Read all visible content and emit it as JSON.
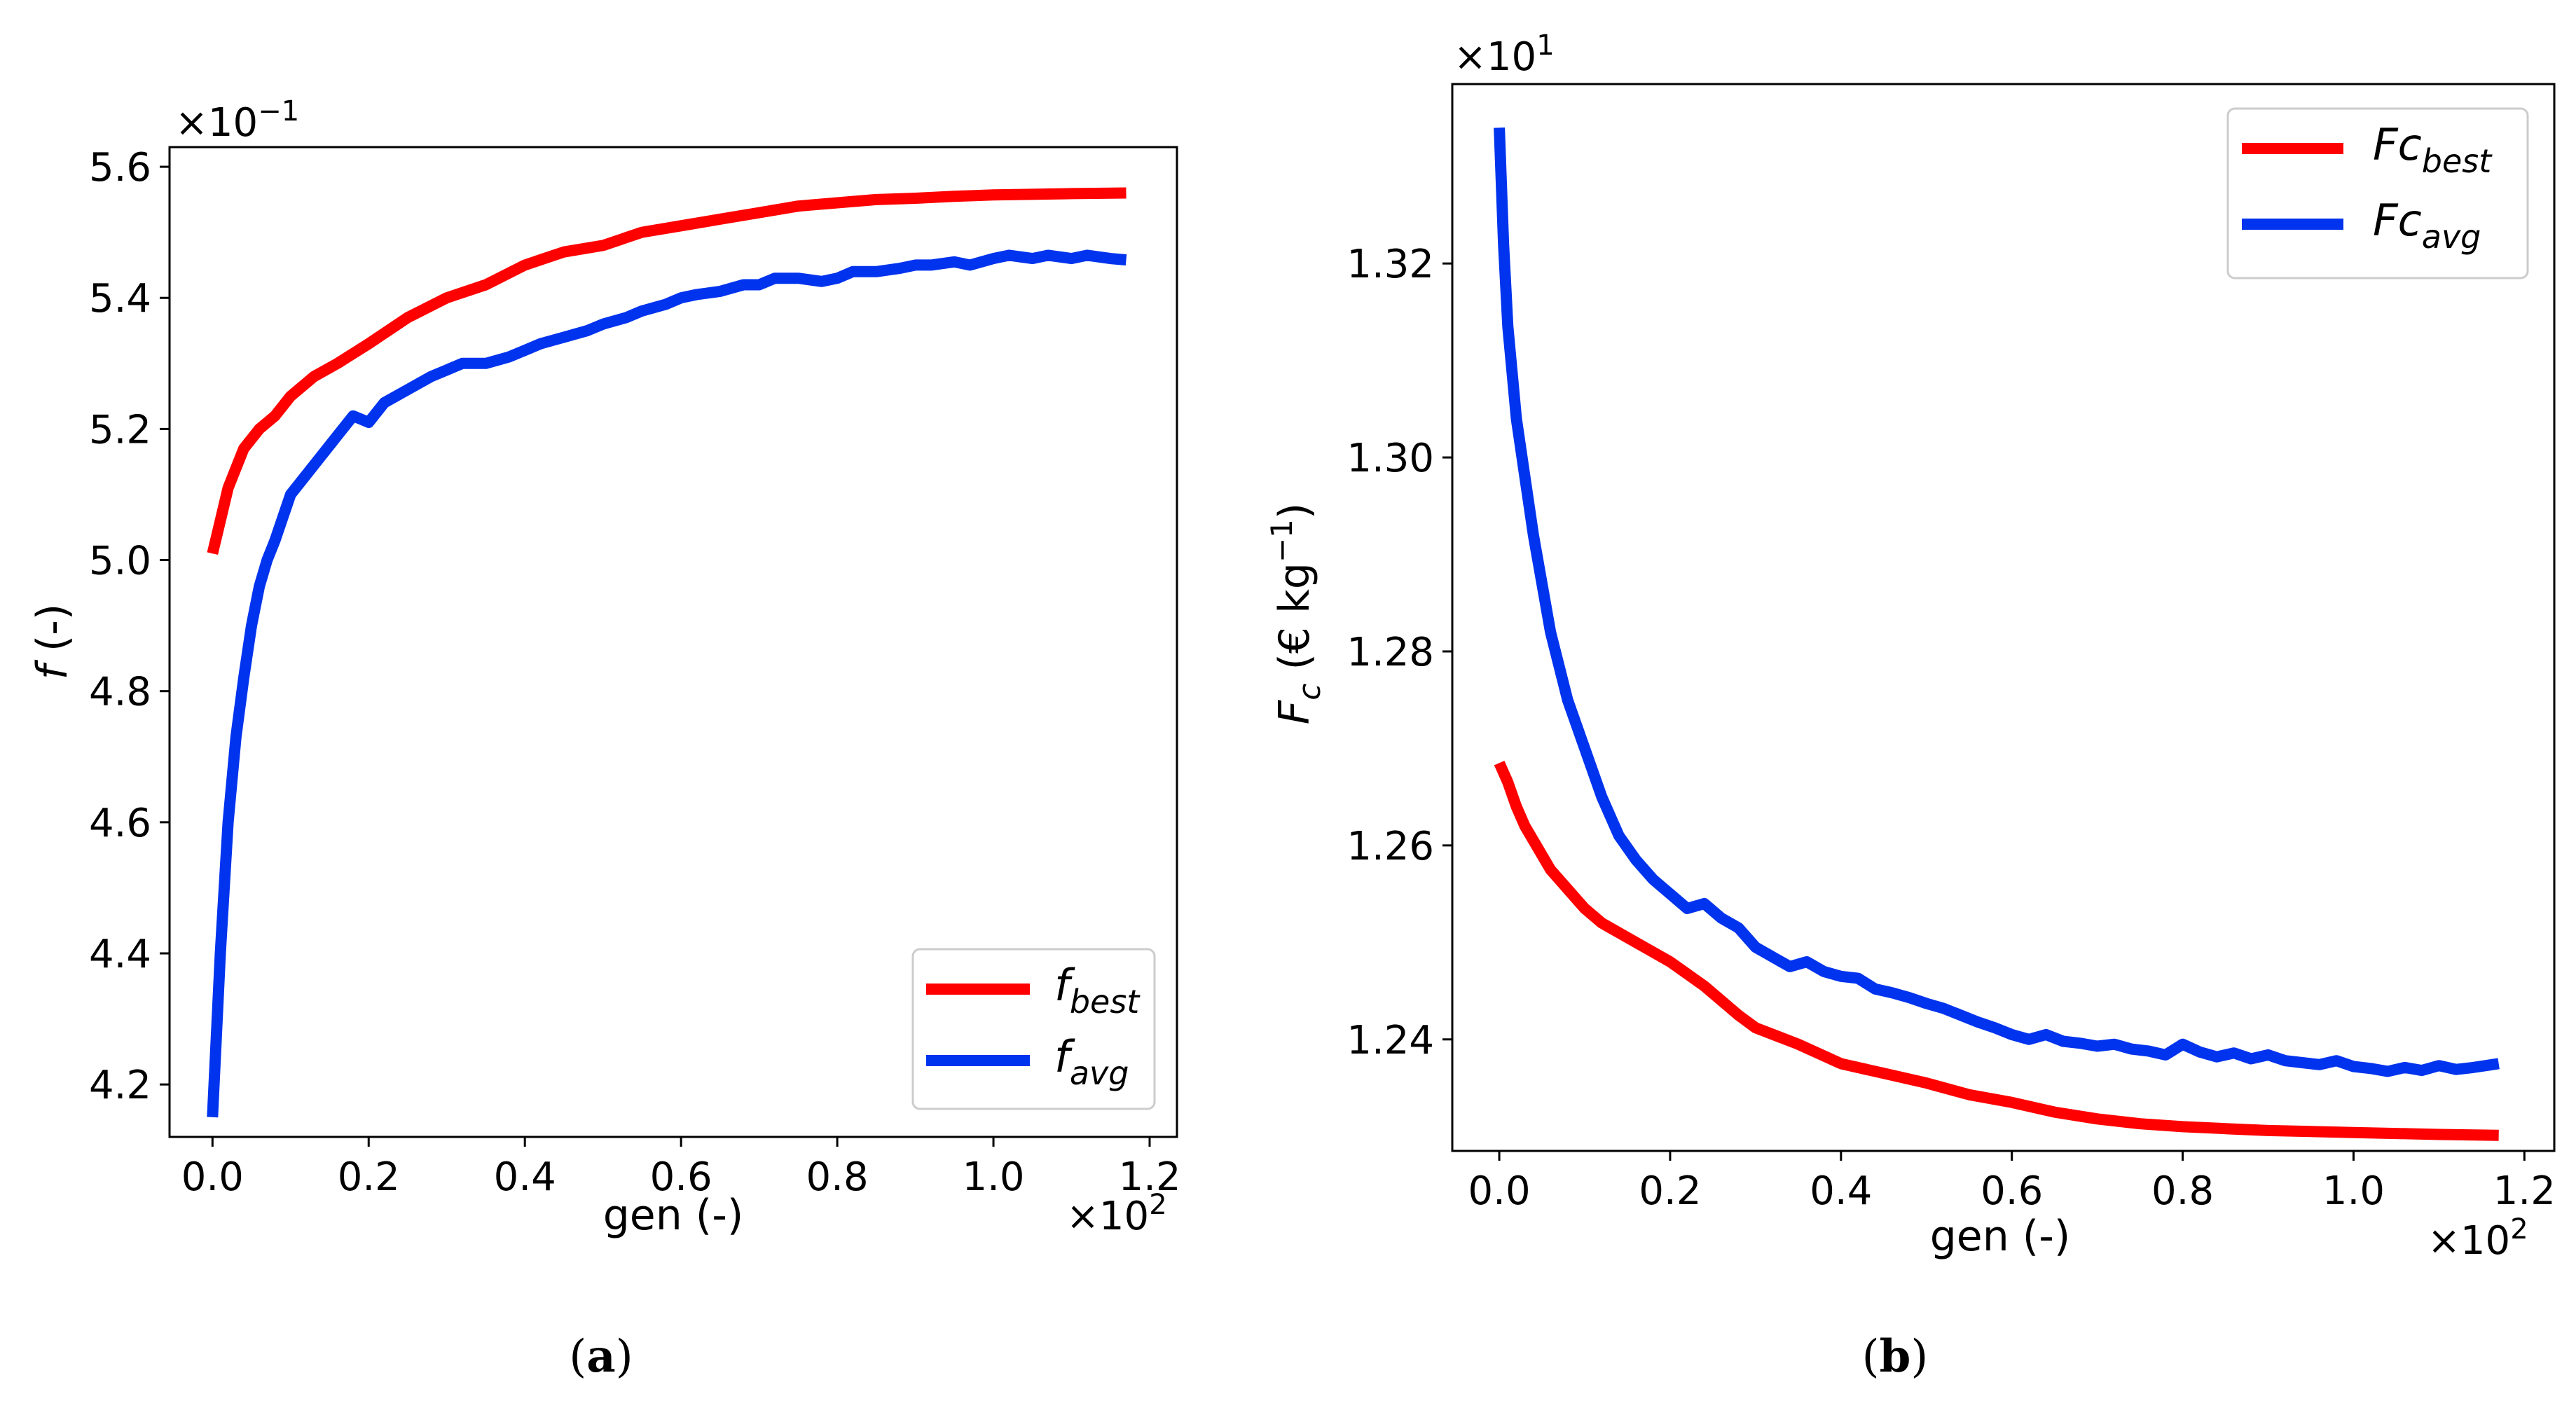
{
  "colors": {
    "best": "#ff0000",
    "avg": "#0033ee"
  },
  "chart_data": [
    {
      "type": "line",
      "panel": "a",
      "caption_prefix": "(",
      "caption_letter": "a",
      "caption_suffix": ")",
      "xlabel": "gen (-)",
      "ylabel_symbol": "f",
      "ylabel_unit": " (-)",
      "x_multiplier": {
        "base": "×10",
        "exp": "2"
      },
      "y_multiplier": {
        "base": "×10",
        "exp": "−1"
      },
      "xlim": [
        -0.055,
        1.235
      ],
      "ylim": [
        4.12,
        5.63
      ],
      "xticks": [
        0.0,
        0.2,
        0.4,
        0.6,
        0.8,
        1.0,
        1.2
      ],
      "xtick_labels": [
        "0.0",
        "0.2",
        "0.4",
        "0.6",
        "0.8",
        "1.0",
        "1.2"
      ],
      "yticks": [
        4.2,
        4.4,
        4.6,
        4.8,
        5.0,
        5.2,
        5.4,
        5.6
      ],
      "ytick_labels": [
        "4.2",
        "4.4",
        "4.6",
        "4.8",
        "5.0",
        "5.2",
        "5.4",
        "5.6"
      ],
      "legend_position": "lower-right",
      "series": [
        {
          "key": "best",
          "name": "f",
          "subscript": "best",
          "x": [
            0.0,
            0.01,
            0.02,
            0.04,
            0.06,
            0.08,
            0.1,
            0.13,
            0.16,
            0.2,
            0.25,
            0.3,
            0.35,
            0.4,
            0.45,
            0.5,
            0.55,
            0.6,
            0.65,
            0.7,
            0.75,
            0.8,
            0.85,
            0.9,
            0.95,
            1.0,
            1.05,
            1.1,
            1.17
          ],
          "values": [
            5.01,
            5.06,
            5.11,
            5.17,
            5.2,
            5.22,
            5.25,
            5.28,
            5.3,
            5.33,
            5.37,
            5.4,
            5.42,
            5.45,
            5.47,
            5.48,
            5.5,
            5.51,
            5.52,
            5.53,
            5.54,
            5.545,
            5.55,
            5.552,
            5.555,
            5.557,
            5.558,
            5.559,
            5.56
          ]
        },
        {
          "key": "avg",
          "name": "f",
          "subscript": "avg",
          "x": [
            0.0,
            0.01,
            0.02,
            0.03,
            0.04,
            0.05,
            0.06,
            0.07,
            0.08,
            0.1,
            0.12,
            0.14,
            0.16,
            0.18,
            0.2,
            0.22,
            0.25,
            0.28,
            0.3,
            0.32,
            0.35,
            0.38,
            0.4,
            0.42,
            0.45,
            0.48,
            0.5,
            0.53,
            0.55,
            0.58,
            0.6,
            0.62,
            0.65,
            0.68,
            0.7,
            0.72,
            0.75,
            0.78,
            0.8,
            0.82,
            0.85,
            0.88,
            0.9,
            0.92,
            0.95,
            0.97,
            1.0,
            1.02,
            1.05,
            1.07,
            1.1,
            1.12,
            1.15,
            1.17
          ],
          "values": [
            4.15,
            4.4,
            4.6,
            4.73,
            4.82,
            4.9,
            4.96,
            5.0,
            5.03,
            5.1,
            5.13,
            5.16,
            5.19,
            5.22,
            5.21,
            5.24,
            5.26,
            5.28,
            5.29,
            5.3,
            5.3,
            5.31,
            5.32,
            5.33,
            5.34,
            5.35,
            5.36,
            5.37,
            5.38,
            5.39,
            5.4,
            5.405,
            5.41,
            5.42,
            5.42,
            5.43,
            5.43,
            5.425,
            5.43,
            5.44,
            5.44,
            5.445,
            5.45,
            5.45,
            5.455,
            5.45,
            5.46,
            5.465,
            5.46,
            5.465,
            5.46,
            5.465,
            5.46,
            5.458
          ]
        }
      ]
    },
    {
      "type": "line",
      "panel": "b",
      "caption_prefix": "(",
      "caption_letter": "b",
      "caption_suffix": ")",
      "xlabel": "gen (-)",
      "ylabel_symbol": "F",
      "ylabel_symbol_sub": "c",
      "ylabel_unit": " (€ kg",
      "ylabel_unit_exp": "−1",
      "ylabel_unit_close": ")",
      "x_multiplier": {
        "base": "×10",
        "exp": "2"
      },
      "y_multiplier": {
        "base": "×10",
        "exp": "1"
      },
      "xlim": [
        -0.055,
        1.235
      ],
      "ylim": [
        1.2285,
        1.3385
      ],
      "xticks": [
        0.0,
        0.2,
        0.4,
        0.6,
        0.8,
        1.0,
        1.2
      ],
      "xtick_labels": [
        "0.0",
        "0.2",
        "0.4",
        "0.6",
        "0.8",
        "1.0",
        "1.2"
      ],
      "yticks": [
        1.24,
        1.26,
        1.28,
        1.3,
        1.32
      ],
      "ytick_labels": [
        "1.24",
        "1.26",
        "1.28",
        "1.30",
        "1.32"
      ],
      "legend_position": "upper-right",
      "series": [
        {
          "key": "best",
          "name": "Fc",
          "subscript": "best",
          "x": [
            0.0,
            0.01,
            0.02,
            0.03,
            0.04,
            0.06,
            0.08,
            0.1,
            0.12,
            0.15,
            0.18,
            0.2,
            0.24,
            0.28,
            0.3,
            0.35,
            0.4,
            0.45,
            0.5,
            0.55,
            0.6,
            0.65,
            0.7,
            0.75,
            0.8,
            0.85,
            0.9,
            0.95,
            1.0,
            1.05,
            1.1,
            1.17
          ],
          "values": [
            1.2685,
            1.2665,
            1.264,
            1.262,
            1.2605,
            1.2575,
            1.2555,
            1.2535,
            1.252,
            1.2505,
            1.249,
            1.248,
            1.2455,
            1.2425,
            1.2412,
            1.2395,
            1.2375,
            1.2365,
            1.2355,
            1.2343,
            1.2335,
            1.2325,
            1.2318,
            1.2313,
            1.231,
            1.2308,
            1.2306,
            1.2305,
            1.2304,
            1.2303,
            1.2302,
            1.2301
          ]
        },
        {
          "key": "avg",
          "name": "Fc",
          "subscript": "avg",
          "x": [
            0.0,
            0.005,
            0.01,
            0.02,
            0.03,
            0.04,
            0.05,
            0.06,
            0.07,
            0.08,
            0.1,
            0.12,
            0.14,
            0.16,
            0.18,
            0.2,
            0.22,
            0.24,
            0.26,
            0.28,
            0.3,
            0.32,
            0.34,
            0.36,
            0.38,
            0.4,
            0.42,
            0.44,
            0.46,
            0.48,
            0.5,
            0.52,
            0.54,
            0.56,
            0.58,
            0.6,
            0.62,
            0.64,
            0.66,
            0.68,
            0.7,
            0.72,
            0.74,
            0.76,
            0.78,
            0.8,
            0.82,
            0.84,
            0.86,
            0.88,
            0.9,
            0.92,
            0.94,
            0.96,
            0.98,
            1.0,
            1.02,
            1.04,
            1.06,
            1.08,
            1.1,
            1.12,
            1.14,
            1.17
          ],
          "values": [
            1.334,
            1.322,
            1.3135,
            1.304,
            1.298,
            1.292,
            1.287,
            1.282,
            1.2785,
            1.275,
            1.27,
            1.265,
            1.261,
            1.2585,
            1.2565,
            1.255,
            1.2535,
            1.254,
            1.2525,
            1.2515,
            1.2495,
            1.2485,
            1.2475,
            1.248,
            1.247,
            1.2465,
            1.2463,
            1.2452,
            1.2448,
            1.2443,
            1.2437,
            1.2432,
            1.2425,
            1.2418,
            1.2412,
            1.2405,
            1.24,
            1.2405,
            1.2398,
            1.2396,
            1.2393,
            1.2395,
            1.239,
            1.2388,
            1.2384,
            1.2395,
            1.2387,
            1.2382,
            1.2386,
            1.238,
            1.2384,
            1.2378,
            1.2376,
            1.2374,
            1.2378,
            1.2372,
            1.237,
            1.2367,
            1.2371,
            1.2368,
            1.2373,
            1.2369,
            1.2371,
            1.2375
          ]
        }
      ]
    }
  ]
}
